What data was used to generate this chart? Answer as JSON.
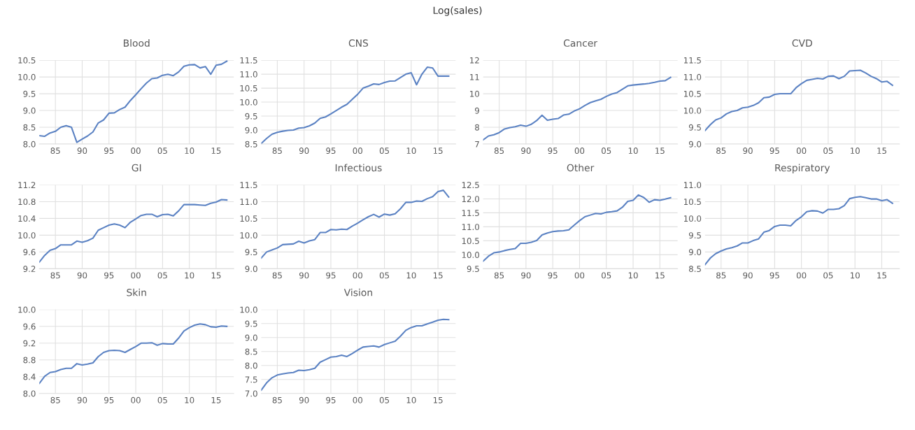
{
  "chart_data": [
    {
      "type": "line",
      "title": "Blood",
      "annotations": [
        "Log(sales)"
      ],
      "color": "#5b82c3",
      "grid": true,
      "marker": "none",
      "line_style": "solid",
      "x": [
        1982,
        1983,
        1984,
        1985,
        1986,
        1987,
        1988,
        1989,
        1990,
        1991,
        1992,
        1993,
        1994,
        1995,
        1996,
        1997,
        1998,
        1999,
        2000,
        2001,
        2002,
        2003,
        2004,
        2005,
        2006,
        2007,
        2008,
        2009,
        2010,
        2011,
        2012,
        2013,
        2014,
        2015,
        2016,
        2017
      ],
      "values": [
        8.25,
        8.23,
        8.33,
        8.38,
        8.5,
        8.55,
        8.5,
        8.05,
        8.15,
        8.24,
        8.36,
        8.63,
        8.72,
        8.92,
        8.93,
        9.03,
        9.1,
        9.3,
        9.47,
        9.65,
        9.82,
        9.95,
        9.97,
        10.05,
        10.08,
        10.04,
        10.15,
        10.32,
        10.36,
        10.37,
        10.27,
        10.31,
        10.08,
        10.35,
        10.38,
        10.47
      ],
      "xlim": [
        1982,
        2018.3
      ],
      "xticks": [
        {
          "value": 1985,
          "label": "85"
        },
        {
          "value": 1990,
          "label": "90"
        },
        {
          "value": 1995,
          "label": "95"
        },
        {
          "value": 2000,
          "label": "00"
        },
        {
          "value": 2005,
          "label": "05"
        },
        {
          "value": 2010,
          "label": "10"
        },
        {
          "value": 2015,
          "label": "15"
        }
      ],
      "ylim": [
        8,
        10.5
      ],
      "yticks": [
        {
          "value": 8,
          "label": "8.0"
        },
        8.5,
        {
          "value": 9,
          "label": "9.0"
        },
        9.5,
        {
          "value": 10,
          "label": "10.0"
        },
        10.5
      ]
    },
    {
      "type": "line",
      "title": "CNS",
      "color": "#5b82c3",
      "grid": true,
      "marker": "none",
      "line_style": "solid",
      "x": [
        1982,
        1983,
        1984,
        1985,
        1986,
        1987,
        1988,
        1989,
        1990,
        1991,
        1992,
        1993,
        1994,
        1995,
        1996,
        1997,
        1998,
        1999,
        2000,
        2001,
        2002,
        2003,
        2004,
        2005,
        2006,
        2007,
        2008,
        2009,
        2010,
        2011,
        2012,
        2013,
        2014,
        2015,
        2016,
        2017
      ],
      "values": [
        8.52,
        8.7,
        8.85,
        8.92,
        8.96,
        8.99,
        9.0,
        9.07,
        9.09,
        9.15,
        9.25,
        9.42,
        9.47,
        9.58,
        9.7,
        9.82,
        9.92,
        10.1,
        10.28,
        10.5,
        10.57,
        10.65,
        10.63,
        10.7,
        10.75,
        10.76,
        10.88,
        11.0,
        11.05,
        10.62,
        11.0,
        11.25,
        11.22,
        10.93,
        10.93,
        10.93
      ],
      "xlim": [
        1982,
        2018.3
      ],
      "xticks": [
        {
          "value": 1985,
          "label": "85"
        },
        {
          "value": 1990,
          "label": "90"
        },
        {
          "value": 1995,
          "label": "95"
        },
        {
          "value": 2000,
          "label": "00"
        },
        {
          "value": 2005,
          "label": "05"
        },
        {
          "value": 2010,
          "label": "10"
        },
        {
          "value": 2015,
          "label": "15"
        }
      ],
      "ylim": [
        8.5,
        11.5
      ],
      "yticks": [
        8.5,
        {
          "value": 9,
          "label": "9.0"
        },
        9.5,
        {
          "value": 10,
          "label": "10.0"
        },
        10.5,
        {
          "value": 11,
          "label": "11.0"
        },
        11.5
      ]
    },
    {
      "type": "line",
      "title": "Cancer",
      "color": "#5b82c3",
      "grid": true,
      "marker": "none",
      "line_style": "solid",
      "x": [
        1982,
        1983,
        1984,
        1985,
        1986,
        1987,
        1988,
        1989,
        1990,
        1991,
        1992,
        1993,
        1994,
        1995,
        1996,
        1997,
        1998,
        1999,
        2000,
        2001,
        2002,
        2003,
        2004,
        2005,
        2006,
        2007,
        2008,
        2009,
        2010,
        2011,
        2012,
        2013,
        2014,
        2015,
        2016,
        2017
      ],
      "values": [
        7.25,
        7.48,
        7.55,
        7.68,
        7.9,
        7.98,
        8.03,
        8.13,
        8.06,
        8.18,
        8.4,
        8.72,
        8.42,
        8.48,
        8.52,
        8.73,
        8.78,
        8.97,
        9.1,
        9.3,
        9.47,
        9.58,
        9.67,
        9.84,
        9.98,
        10.07,
        10.27,
        10.47,
        10.52,
        10.55,
        10.58,
        10.62,
        10.68,
        10.75,
        10.78,
        10.98
      ],
      "xlim": [
        1982,
        2018.3
      ],
      "xticks": [
        {
          "value": 1985,
          "label": "85"
        },
        {
          "value": 1990,
          "label": "90"
        },
        {
          "value": 1995,
          "label": "95"
        },
        {
          "value": 2000,
          "label": "00"
        },
        {
          "value": 2005,
          "label": "05"
        },
        {
          "value": 2010,
          "label": "10"
        },
        {
          "value": 2015,
          "label": "15"
        }
      ],
      "ylim": [
        7,
        12
      ],
      "yticks": [
        7,
        8,
        9,
        10,
        11,
        12
      ]
    },
    {
      "type": "line",
      "title": "CVD",
      "color": "#5b82c3",
      "grid": true,
      "marker": "none",
      "line_style": "solid",
      "x": [
        1982,
        1983,
        1984,
        1985,
        1986,
        1987,
        1988,
        1989,
        1990,
        1991,
        1992,
        1993,
        1994,
        1995,
        1996,
        1997,
        1998,
        1999,
        2000,
        2001,
        2002,
        2003,
        2004,
        2005,
        2006,
        2007,
        2008,
        2009,
        2010,
        2011,
        2012,
        2013,
        2014,
        2015,
        2016,
        2017
      ],
      "values": [
        9.4,
        9.58,
        9.72,
        9.78,
        9.9,
        9.97,
        10.0,
        10.08,
        10.1,
        10.15,
        10.23,
        10.38,
        10.4,
        10.48,
        10.5,
        10.5,
        10.5,
        10.68,
        10.8,
        10.9,
        10.93,
        10.96,
        10.94,
        11.02,
        11.03,
        10.95,
        11.02,
        11.18,
        11.19,
        11.2,
        11.12,
        11.02,
        10.95,
        10.85,
        10.87,
        10.75
      ],
      "xlim": [
        1982,
        2018.3
      ],
      "xticks": [
        {
          "value": 1985,
          "label": "85"
        },
        {
          "value": 1990,
          "label": "90"
        },
        {
          "value": 1995,
          "label": "95"
        },
        {
          "value": 2000,
          "label": "00"
        },
        {
          "value": 2005,
          "label": "05"
        },
        {
          "value": 2010,
          "label": "10"
        },
        {
          "value": 2015,
          "label": "15"
        }
      ],
      "ylim": [
        9,
        11.5
      ],
      "yticks": [
        {
          "value": 9,
          "label": "9.0"
        },
        9.5,
        {
          "value": 10,
          "label": "10.0"
        },
        10.5,
        {
          "value": 11,
          "label": "11.0"
        },
        11.5
      ]
    },
    {
      "type": "line",
      "title": "GI",
      "color": "#5b82c3",
      "grid": true,
      "marker": "none",
      "line_style": "solid",
      "x": [
        1982,
        1983,
        1984,
        1985,
        1986,
        1987,
        1988,
        1989,
        1990,
        1991,
        1992,
        1993,
        1994,
        1995,
        1996,
        1997,
        1998,
        1999,
        2000,
        2001,
        2002,
        2003,
        2004,
        2005,
        2006,
        2007,
        2008,
        2009,
        2010,
        2011,
        2012,
        2013,
        2014,
        2015,
        2016,
        2017
      ],
      "values": [
        9.36,
        9.52,
        9.64,
        9.68,
        9.77,
        9.77,
        9.77,
        9.86,
        9.83,
        9.87,
        9.93,
        10.12,
        10.18,
        10.24,
        10.27,
        10.24,
        10.18,
        10.31,
        10.39,
        10.47,
        10.5,
        10.5,
        10.44,
        10.49,
        10.5,
        10.46,
        10.58,
        10.73,
        10.73,
        10.73,
        10.72,
        10.71,
        10.76,
        10.79,
        10.85,
        10.84
      ],
      "xlim": [
        1982,
        2018.3
      ],
      "xticks": [
        {
          "value": 1985,
          "label": "85"
        },
        {
          "value": 1990,
          "label": "90"
        },
        {
          "value": 1995,
          "label": "95"
        },
        {
          "value": 2000,
          "label": "00"
        },
        {
          "value": 2005,
          "label": "05"
        },
        {
          "value": 2010,
          "label": "10"
        },
        {
          "value": 2015,
          "label": "15"
        }
      ],
      "ylim": [
        9.2,
        11.2
      ],
      "yticks": [
        9.2,
        9.6,
        {
          "value": 10,
          "label": "10.0"
        },
        10.4,
        10.8,
        11.2
      ]
    },
    {
      "type": "line",
      "title": "Infectious",
      "color": "#5b82c3",
      "grid": true,
      "marker": "none",
      "line_style": "solid",
      "x": [
        1982,
        1983,
        1984,
        1985,
        1986,
        1987,
        1988,
        1989,
        1990,
        1991,
        1992,
        1993,
        1994,
        1995,
        1996,
        1997,
        1998,
        1999,
        2000,
        2001,
        2002,
        2003,
        2004,
        2005,
        2006,
        2007,
        2008,
        2009,
        2010,
        2011,
        2012,
        2013,
        2014,
        2015,
        2016,
        2017
      ],
      "values": [
        9.32,
        9.5,
        9.56,
        9.62,
        9.72,
        9.73,
        9.74,
        9.82,
        9.77,
        9.83,
        9.87,
        10.08,
        10.08,
        10.17,
        10.16,
        10.18,
        10.17,
        10.27,
        10.36,
        10.46,
        10.55,
        10.62,
        10.54,
        10.63,
        10.6,
        10.64,
        10.79,
        10.98,
        10.98,
        11.02,
        11.01,
        11.09,
        11.15,
        11.3,
        11.34,
        11.14
      ],
      "xlim": [
        1982,
        2018.3
      ],
      "xticks": [
        {
          "value": 1985,
          "label": "85"
        },
        {
          "value": 1990,
          "label": "90"
        },
        {
          "value": 1995,
          "label": "95"
        },
        {
          "value": 2000,
          "label": "00"
        },
        {
          "value": 2005,
          "label": "05"
        },
        {
          "value": 2010,
          "label": "10"
        },
        {
          "value": 2015,
          "label": "15"
        }
      ],
      "ylim": [
        9,
        11.5
      ],
      "yticks": [
        {
          "value": 9,
          "label": "9.0"
        },
        9.5,
        {
          "value": 10,
          "label": "10.0"
        },
        10.5,
        {
          "value": 11,
          "label": "11.0"
        },
        11.5
      ]
    },
    {
      "type": "line",
      "title": "Other",
      "color": "#5b82c3",
      "grid": true,
      "marker": "none",
      "line_style": "solid",
      "x": [
        1982,
        1983,
        1984,
        1985,
        1986,
        1987,
        1988,
        1989,
        1990,
        1991,
        1992,
        1993,
        1994,
        1995,
        1996,
        1997,
        1998,
        1999,
        2000,
        2001,
        2002,
        2003,
        2004,
        2005,
        2006,
        2007,
        2008,
        2009,
        2010,
        2011,
        2012,
        2013,
        2014,
        2015,
        2016,
        2017
      ],
      "values": [
        9.77,
        9.95,
        10.07,
        10.1,
        10.15,
        10.19,
        10.22,
        10.41,
        10.41,
        10.45,
        10.51,
        10.71,
        10.78,
        10.83,
        10.85,
        10.86,
        10.89,
        11.06,
        11.22,
        11.36,
        11.42,
        11.48,
        11.46,
        11.52,
        11.54,
        11.57,
        11.7,
        11.91,
        11.95,
        12.14,
        12.05,
        11.88,
        11.97,
        11.95,
        11.99,
        12.04
      ],
      "xlim": [
        1982,
        2018.3
      ],
      "xticks": [
        {
          "value": 1985,
          "label": "85"
        },
        {
          "value": 1990,
          "label": "90"
        },
        {
          "value": 1995,
          "label": "95"
        },
        {
          "value": 2000,
          "label": "00"
        },
        {
          "value": 2005,
          "label": "05"
        },
        {
          "value": 2010,
          "label": "10"
        },
        {
          "value": 2015,
          "label": "15"
        }
      ],
      "ylim": [
        9.5,
        12.5
      ],
      "yticks": [
        9.5,
        {
          "value": 10,
          "label": "10.0"
        },
        10.5,
        {
          "value": 11,
          "label": "11.0"
        },
        11.5,
        {
          "value": 12,
          "label": "12.0"
        },
        12.5
      ]
    },
    {
      "type": "line",
      "title": "Respiratory",
      "color": "#5b82c3",
      "grid": true,
      "marker": "none",
      "line_style": "solid",
      "x": [
        1982,
        1983,
        1984,
        1985,
        1986,
        1987,
        1988,
        1989,
        1990,
        1991,
        1992,
        1993,
        1994,
        1995,
        1996,
        1997,
        1998,
        1999,
        2000,
        2001,
        2002,
        2003,
        2004,
        2005,
        2006,
        2007,
        2008,
        2009,
        2010,
        2011,
        2012,
        2013,
        2014,
        2015,
        2016,
        2017
      ],
      "values": [
        8.62,
        8.82,
        8.95,
        9.03,
        9.09,
        9.13,
        9.18,
        9.27,
        9.27,
        9.34,
        9.39,
        9.59,
        9.64,
        9.76,
        9.8,
        9.8,
        9.78,
        9.94,
        10.05,
        10.2,
        10.23,
        10.22,
        10.16,
        10.27,
        10.27,
        10.29,
        10.38,
        10.59,
        10.63,
        10.65,
        10.62,
        10.58,
        10.58,
        10.53,
        10.56,
        10.45
      ],
      "xlim": [
        1982,
        2018.3
      ],
      "xticks": [
        {
          "value": 1985,
          "label": "85"
        },
        {
          "value": 1990,
          "label": "90"
        },
        {
          "value": 1995,
          "label": "95"
        },
        {
          "value": 2000,
          "label": "00"
        },
        {
          "value": 2005,
          "label": "05"
        },
        {
          "value": 2010,
          "label": "10"
        },
        {
          "value": 2015,
          "label": "15"
        }
      ],
      "ylim": [
        8.5,
        11
      ],
      "yticks": [
        8.5,
        {
          "value": 9,
          "label": "9.0"
        },
        9.5,
        {
          "value": 10,
          "label": "10.0"
        },
        10.5,
        {
          "value": 11,
          "label": "11.0"
        }
      ]
    },
    {
      "type": "line",
      "title": "Skin",
      "color": "#5b82c3",
      "grid": true,
      "marker": "none",
      "line_style": "solid",
      "x": [
        1982,
        1983,
        1984,
        1985,
        1986,
        1987,
        1988,
        1989,
        1990,
        1991,
        1992,
        1993,
        1994,
        1995,
        1996,
        1997,
        1998,
        1999,
        2000,
        2001,
        2002,
        2003,
        2004,
        2005,
        2006,
        2007,
        2008,
        2009,
        2010,
        2011,
        2012,
        2013,
        2014,
        2015,
        2016,
        2017
      ],
      "values": [
        8.24,
        8.41,
        8.5,
        8.52,
        8.57,
        8.6,
        8.6,
        8.71,
        8.68,
        8.7,
        8.73,
        8.88,
        8.98,
        9.02,
        9.03,
        9.02,
        8.98,
        9.05,
        9.12,
        9.2,
        9.2,
        9.21,
        9.15,
        9.19,
        9.18,
        9.18,
        9.32,
        9.49,
        9.57,
        9.63,
        9.66,
        9.64,
        9.59,
        9.58,
        9.61,
        9.6
      ],
      "xlim": [
        1982,
        2018.3
      ],
      "xticks": [
        {
          "value": 1985,
          "label": "85"
        },
        {
          "value": 1990,
          "label": "90"
        },
        {
          "value": 1995,
          "label": "95"
        },
        {
          "value": 2000,
          "label": "00"
        },
        {
          "value": 2005,
          "label": "05"
        },
        {
          "value": 2010,
          "label": "10"
        },
        {
          "value": 2015,
          "label": "15"
        }
      ],
      "ylim": [
        8,
        10
      ],
      "yticks": [
        {
          "value": 8,
          "label": "8.0"
        },
        8.4,
        8.8,
        9.2,
        9.6,
        {
          "value": 10,
          "label": "10.0"
        }
      ]
    },
    {
      "type": "line",
      "title": "Vision",
      "color": "#5b82c3",
      "grid": true,
      "marker": "none",
      "line_style": "solid",
      "x": [
        1982,
        1983,
        1984,
        1985,
        1986,
        1987,
        1988,
        1989,
        1990,
        1991,
        1992,
        1993,
        1994,
        1995,
        1996,
        1997,
        1998,
        1999,
        2000,
        2001,
        2002,
        2003,
        2004,
        2005,
        2006,
        2007,
        2008,
        2009,
        2010,
        2011,
        2012,
        2013,
        2014,
        2015,
        2016,
        2017
      ],
      "values": [
        7.12,
        7.38,
        7.56,
        7.66,
        7.7,
        7.73,
        7.75,
        7.83,
        7.82,
        7.85,
        7.9,
        8.12,
        8.21,
        8.3,
        8.32,
        8.37,
        8.32,
        8.43,
        8.55,
        8.66,
        8.68,
        8.7,
        8.66,
        8.75,
        8.81,
        8.87,
        9.05,
        9.26,
        9.36,
        9.42,
        9.42,
        9.49,
        9.55,
        9.62,
        9.65,
        9.64
      ],
      "xlim": [
        1982,
        2018.3
      ],
      "xticks": [
        {
          "value": 1985,
          "label": "85"
        },
        {
          "value": 1990,
          "label": "90"
        },
        {
          "value": 1995,
          "label": "95"
        },
        {
          "value": 2000,
          "label": "00"
        },
        {
          "value": 2005,
          "label": "05"
        },
        {
          "value": 2010,
          "label": "10"
        },
        {
          "value": 2015,
          "label": "15"
        }
      ],
      "ylim": [
        7,
        10
      ],
      "yticks": [
        {
          "value": 7,
          "label": "7.0"
        },
        7.5,
        {
          "value": 8,
          "label": "8.0"
        },
        8.5,
        {
          "value": 9,
          "label": "9.0"
        },
        9.5,
        {
          "value": 10,
          "label": "10.0"
        }
      ]
    }
  ]
}
